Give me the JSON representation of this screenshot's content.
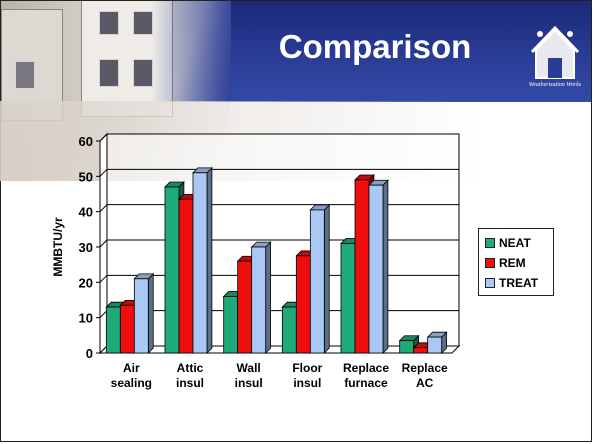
{
  "slide": {
    "title": "Comparison",
    "logo_text": "Weatherization Works"
  },
  "chart_data": {
    "type": "bar",
    "title": "",
    "xlabel": "",
    "ylabel": "MMBTU/yr",
    "ylim": [
      0,
      60
    ],
    "yticks": [
      0,
      10,
      20,
      30,
      40,
      50,
      60
    ],
    "grid": true,
    "legend_position": "right",
    "categories": [
      [
        "Air",
        "sealing"
      ],
      [
        "Attic",
        "insul"
      ],
      [
        "Wall",
        "insul"
      ],
      [
        "Floor",
        "insul"
      ],
      [
        "Replace",
        "furnace"
      ],
      [
        "Replace",
        "AC"
      ]
    ],
    "series": [
      {
        "name": "NEAT",
        "color": "#1faa7a",
        "values": [
          13,
          47,
          16,
          13,
          31,
          3.5
        ]
      },
      {
        "name": "REM",
        "color": "#ee0e0e",
        "values": [
          13.5,
          43.5,
          26,
          27.5,
          49,
          1.5
        ]
      },
      {
        "name": "TREAT",
        "color": "#a9c8f4",
        "values": [
          21,
          51,
          30,
          40.5,
          47.5,
          4.5
        ]
      }
    ]
  }
}
